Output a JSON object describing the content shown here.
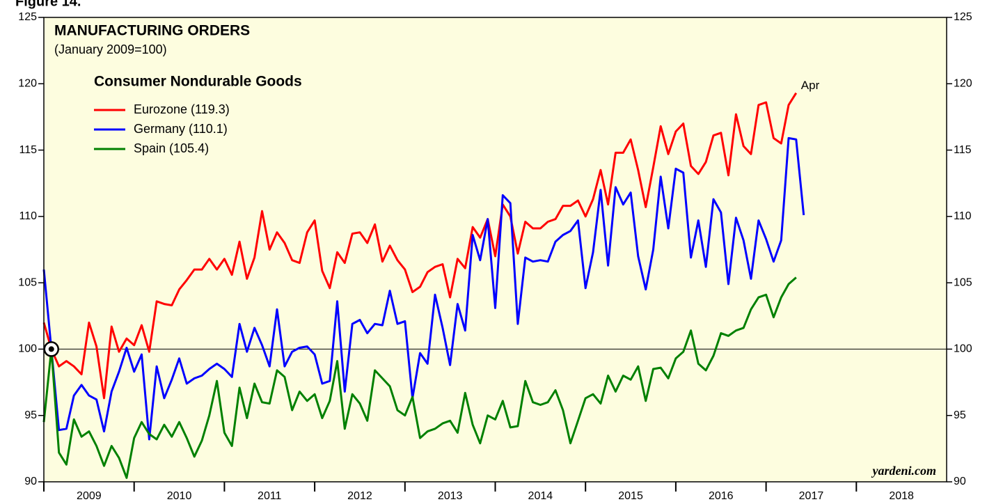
{
  "chart_data": {
    "type": "line",
    "figure_label": "Figure 14.",
    "title": "MANUFACTURING ORDERS",
    "subtitle": "(January 2009=100)",
    "legend_title": "Consumer Nondurable Goods",
    "legend": "upper left",
    "annotation": "Apr",
    "source": "yardeni.com",
    "background": "#fdfddf",
    "reference_line": 100,
    "xlim": [
      2009,
      2019
    ],
    "xticks": [
      {
        "value": 2009,
        "label": "2009"
      },
      {
        "value": 2010,
        "label": "2010"
      },
      {
        "value": 2011,
        "label": "2011"
      },
      {
        "value": 2012,
        "label": "2012"
      },
      {
        "value": 2013,
        "label": "2013"
      },
      {
        "value": 2014,
        "label": "2014"
      },
      {
        "value": 2015,
        "label": "2015"
      },
      {
        "value": 2016,
        "label": "2016"
      },
      {
        "value": 2017,
        "label": "2017"
      },
      {
        "value": 2018,
        "label": "2018"
      }
    ],
    "ylim": [
      90,
      125
    ],
    "yticks": [
      90,
      95,
      100,
      105,
      110,
      115,
      120,
      125
    ],
    "x": [
      2009.0,
      2009.083,
      2009.167,
      2009.25,
      2009.333,
      2009.417,
      2009.5,
      2009.583,
      2009.667,
      2009.75,
      2009.833,
      2009.917,
      2010.0,
      2010.083,
      2010.167,
      2010.25,
      2010.333,
      2010.417,
      2010.5,
      2010.583,
      2010.667,
      2010.75,
      2010.833,
      2010.917,
      2011.0,
      2011.083,
      2011.167,
      2011.25,
      2011.333,
      2011.417,
      2011.5,
      2011.583,
      2011.667,
      2011.75,
      2011.833,
      2011.917,
      2012.0,
      2012.083,
      2012.167,
      2012.25,
      2012.333,
      2012.417,
      2012.5,
      2012.583,
      2012.667,
      2012.75,
      2012.833,
      2012.917,
      2013.0,
      2013.083,
      2013.167,
      2013.25,
      2013.333,
      2013.417,
      2013.5,
      2013.583,
      2013.667,
      2013.75,
      2013.833,
      2013.917,
      2014.0,
      2014.083,
      2014.167,
      2014.25,
      2014.333,
      2014.417,
      2014.5,
      2014.583,
      2014.667,
      2014.75,
      2014.833,
      2014.917,
      2015.0,
      2015.083,
      2015.167,
      2015.25,
      2015.333,
      2015.417,
      2015.5,
      2015.583,
      2015.667,
      2015.75,
      2015.833,
      2015.917,
      2016.0,
      2016.083,
      2016.167,
      2016.25,
      2016.333,
      2016.417,
      2016.5,
      2016.583,
      2016.667,
      2016.75,
      2016.833,
      2016.917,
      2017.0,
      2017.083,
      2017.167,
      2017.25,
      2017.333,
      2017.417
    ],
    "series": [
      {
        "name": "Eurozone (119.3)",
        "color": "#ff0000",
        "values": [
          102.0,
          100.0,
          98.7,
          99.1,
          98.7,
          98.1,
          102.0,
          100.2,
          96.3,
          101.7,
          99.8,
          100.8,
          100.3,
          101.8,
          99.8,
          103.6,
          103.4,
          103.3,
          104.5,
          105.2,
          106.0,
          106.0,
          106.8,
          106.0,
          106.8,
          105.6,
          108.1,
          105.3,
          106.9,
          110.4,
          107.5,
          108.8,
          108.0,
          106.7,
          106.5,
          108.8,
          109.7,
          105.9,
          104.6,
          107.3,
          106.5,
          108.7,
          108.8,
          108.0,
          109.4,
          106.6,
          107.8,
          106.7,
          106.0,
          104.3,
          104.7,
          105.8,
          106.2,
          106.4,
          103.9,
          106.8,
          106.1,
          109.2,
          108.4,
          109.8,
          107.0,
          110.9,
          110.0,
          107.2,
          109.6,
          109.1,
          109.1,
          109.6,
          109.8,
          110.8,
          110.8,
          111.2,
          110.0,
          111.3,
          113.5,
          110.9,
          114.8,
          114.8,
          115.8,
          113.5,
          110.7,
          113.7,
          116.8,
          114.7,
          116.4,
          117.0,
          113.8,
          113.2,
          114.1,
          116.1,
          116.3,
          113.1,
          117.7,
          115.3,
          114.7,
          118.4,
          118.6,
          115.9,
          115.5,
          118.4,
          119.3,
          null
        ]
      },
      {
        "name": "Germany (110.1)",
        "color": "#0000ff",
        "values": [
          106.0,
          100.0,
          93.9,
          94.0,
          96.5,
          97.3,
          96.5,
          96.2,
          93.8,
          96.8,
          98.3,
          100.1,
          98.3,
          99.6,
          93.2,
          98.7,
          96.3,
          97.7,
          99.3,
          97.4,
          97.8,
          98.0,
          98.5,
          98.9,
          98.5,
          97.9,
          101.9,
          99.8,
          101.6,
          100.3,
          98.7,
          103.0,
          98.7,
          99.8,
          100.1,
          100.2,
          99.6,
          97.4,
          97.6,
          103.6,
          96.8,
          101.9,
          102.2,
          101.2,
          101.9,
          101.8,
          104.4,
          101.9,
          102.1,
          96.3,
          99.7,
          98.9,
          104.1,
          101.6,
          98.8,
          103.4,
          101.4,
          108.6,
          106.7,
          109.8,
          103.1,
          111.6,
          111.0,
          101.9,
          106.9,
          106.6,
          106.7,
          106.6,
          108.1,
          108.6,
          108.9,
          109.7,
          104.6,
          107.3,
          112.0,
          106.3,
          112.2,
          110.9,
          111.8,
          107.0,
          104.5,
          107.5,
          113.0,
          109.1,
          113.6,
          113.3,
          106.9,
          109.7,
          106.2,
          111.3,
          110.3,
          104.9,
          109.9,
          108.2,
          105.3,
          109.7,
          108.3,
          106.6,
          108.2,
          115.9,
          115.8,
          110.1
        ]
      },
      {
        "name": "Spain (105.4)",
        "color": "#008000",
        "values": [
          94.5,
          100.0,
          92.2,
          91.3,
          94.7,
          93.4,
          93.8,
          92.7,
          91.2,
          92.7,
          91.8,
          90.3,
          93.3,
          94.5,
          93.6,
          93.2,
          94.3,
          93.4,
          94.5,
          93.3,
          91.9,
          93.1,
          95.0,
          97.6,
          93.7,
          92.7,
          97.1,
          94.8,
          97.4,
          96.0,
          95.9,
          98.4,
          97.9,
          95.4,
          96.8,
          96.1,
          96.6,
          94.8,
          96.1,
          99.1,
          94.0,
          96.6,
          95.9,
          94.6,
          98.4,
          97.8,
          97.2,
          95.4,
          95.0,
          96.4,
          93.3,
          93.8,
          94.0,
          94.4,
          94.6,
          93.7,
          96.7,
          94.3,
          92.9,
          95.0,
          94.7,
          96.1,
          94.1,
          94.2,
          97.6,
          96.0,
          95.8,
          96.0,
          96.9,
          95.4,
          92.9,
          94.6,
          96.3,
          96.6,
          95.9,
          98.0,
          96.8,
          98.0,
          97.7,
          98.7,
          96.1,
          98.5,
          98.6,
          97.8,
          99.3,
          99.8,
          101.4,
          98.9,
          98.4,
          99.5,
          101.2,
          101.0,
          101.4,
          101.6,
          103.0,
          103.9,
          104.1,
          102.4,
          103.9,
          104.9,
          105.4,
          null
        ]
      }
    ]
  }
}
